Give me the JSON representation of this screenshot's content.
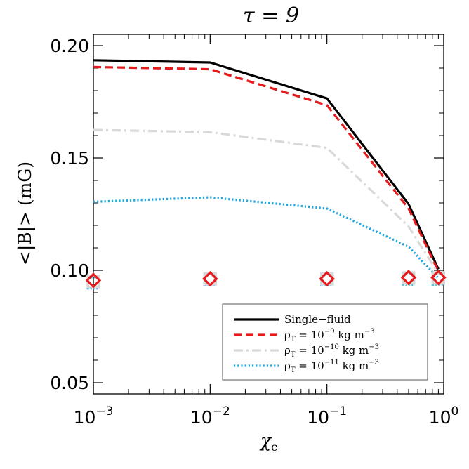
{
  "chart_data": {
    "type": "line",
    "title": "τ = 9",
    "xlabel": "χ",
    "xlabel_sub": "c",
    "ylabel": "<|B|> (mG)",
    "x_scale": "log",
    "xlim": [
      0.001,
      1
    ],
    "ylim": [
      0.045,
      0.205
    ],
    "x_ticks": [
      {
        "value": 0.001,
        "base": "10",
        "exp": "−3"
      },
      {
        "value": 0.01,
        "base": "10",
        "exp": "−2"
      },
      {
        "value": 0.1,
        "base": "10",
        "exp": "−1"
      },
      {
        "value": 1,
        "base": "10",
        "exp": "0"
      }
    ],
    "y_ticks": [
      {
        "value": 0.05,
        "label": "0.05"
      },
      {
        "value": 0.1,
        "label": "0.10"
      },
      {
        "value": 0.15,
        "label": "0.15"
      },
      {
        "value": 0.2,
        "label": "0.20"
      }
    ],
    "legend_placement": "bottom-right",
    "series": [
      {
        "name": "Single−fluid",
        "style": "solid",
        "color": "#000000",
        "x": [
          0.001,
          0.01,
          0.1,
          0.5,
          0.9
        ],
        "y": [
          0.1935,
          0.1925,
          0.1765,
          0.1295,
          0.1005
        ]
      },
      {
        "name": "ρ",
        "name_sub": "T",
        "name_rest": " = 10",
        "name_exp": "−9",
        "name_unit": " kg m",
        "name_unit_exp": "−3",
        "style": "dashed",
        "color": "#e41a1c",
        "x": [
          0.001,
          0.01,
          0.1,
          0.5,
          0.9
        ],
        "y": [
          0.1905,
          0.1895,
          0.1735,
          0.1275,
          0.0995
        ]
      },
      {
        "name": "ρ",
        "name_sub": "T",
        "name_rest": " = 10",
        "name_exp": "−10",
        "name_unit": " kg m",
        "name_unit_exp": "−3",
        "style": "dashdot",
        "color": "#d9d9d9",
        "x": [
          0.001,
          0.01,
          0.1,
          0.5,
          0.9
        ],
        "y": [
          0.1625,
          0.1615,
          0.1545,
          0.1195,
          0.0985
        ]
      },
      {
        "name": "ρ",
        "name_sub": "T",
        "name_rest": " = 10",
        "name_exp": "−11",
        "name_unit": " kg m",
        "name_unit_exp": "−3",
        "style": "dotted",
        "color": "#1ba8e0",
        "x": [
          0.001,
          0.01,
          0.1,
          0.5,
          0.9
        ],
        "y": [
          0.1305,
          0.1325,
          0.1275,
          0.1105,
          0.0965
        ]
      }
    ],
    "markers": [
      {
        "shape": "square",
        "color": "#1ba8e0",
        "x": [
          0.001,
          0.01,
          0.1,
          0.5,
          0.9
        ],
        "y": [
          0.0945,
          0.0958,
          0.0958,
          0.0962,
          0.0962
        ]
      },
      {
        "shape": "square",
        "color": "#d9d9d9",
        "x": [
          0.001,
          0.01,
          0.1,
          0.5,
          0.9
        ],
        "y": [
          0.095,
          0.0962,
          0.0962,
          0.0966,
          0.0966
        ]
      },
      {
        "shape": "diamond",
        "color": "#e41a1c",
        "x": [
          0.001,
          0.01,
          0.1,
          0.5,
          0.9
        ],
        "y": [
          0.0955,
          0.0962,
          0.0962,
          0.0968,
          0.0968
        ]
      }
    ]
  }
}
